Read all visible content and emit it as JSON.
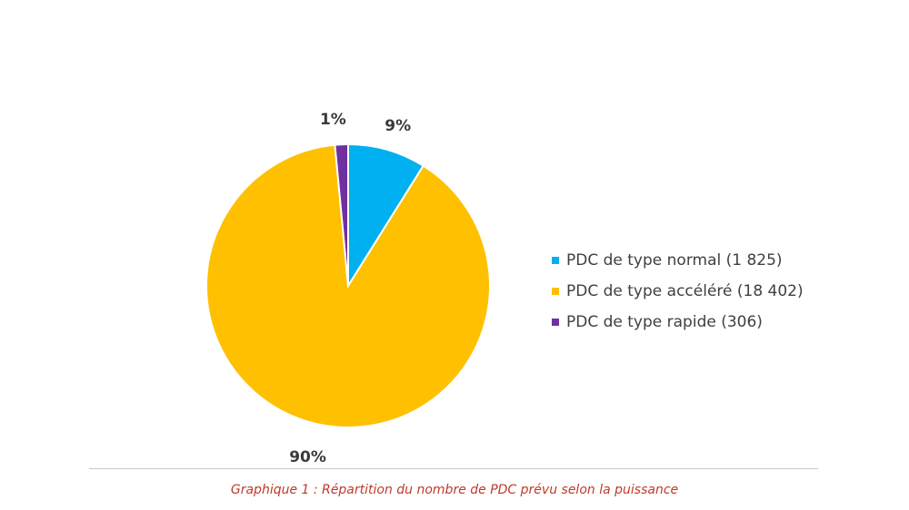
{
  "chart_data": {
    "type": "pie",
    "title": "",
    "slices": [
      {
        "label": "PDC de type normal (1 825)",
        "value": 1825,
        "percent_label": "9%",
        "color": "#00B0F0"
      },
      {
        "label": "PDC de type accéléré (18 402)",
        "value": 18402,
        "percent_label": "90%",
        "color": "#FFC000"
      },
      {
        "label": "PDC de type rapide (306)",
        "value": 306,
        "percent_label": "1%",
        "color": "#7030A0"
      }
    ],
    "legend_position": "right"
  },
  "caption": "Graphique 1 : Répartition du nombre de PDC prévu selon la puissance"
}
